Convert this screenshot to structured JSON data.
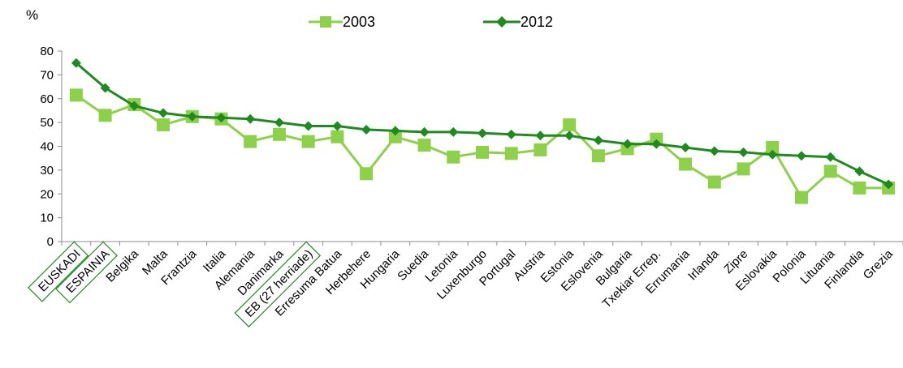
{
  "chart_data": {
    "type": "line",
    "ylabel": "%",
    "ylim": [
      0,
      80
    ],
    "yticks": [
      0,
      10,
      20,
      30,
      40,
      50,
      60,
      70,
      80
    ],
    "grid": false,
    "legend_position": "top-center",
    "categories": [
      "EUSKADI",
      "ESPAINIA",
      "Belgika",
      "Malta",
      "Frantzia",
      "Italia",
      "Alemania",
      "Danimarka",
      "EB (27 herriade)",
      "Erresuma Batua",
      "Herbehere",
      "Hungaria",
      "Suedia",
      "Letonia",
      "Luxenburgo",
      "Portugal",
      "Austria",
      "Estonia",
      "Eslovenia",
      "Bulgaria",
      "Txekiar Errep.",
      "Errumania",
      "Irlanda",
      "Zipre",
      "Eslovakia",
      "Polonia",
      "Lituania",
      "Finlandia",
      "Grezia"
    ],
    "highlighted_categories": [
      "EUSKADI",
      "ESPAINIA",
      "EB (27 herriade)"
    ],
    "series": [
      {
        "name": "2003",
        "marker": "square",
        "color": "#8dd04a",
        "values": [
          61.5,
          53,
          57.5,
          49,
          52.5,
          51.5,
          42,
          45,
          42,
          44,
          28.5,
          44,
          40.5,
          35.5,
          37.5,
          37,
          38.5,
          49,
          36,
          39,
          43,
          32.5,
          25,
          30.5,
          39.5,
          18.5,
          29.5,
          22.5,
          22.5
        ]
      },
      {
        "name": "2012",
        "marker": "diamond",
        "color": "#1f8a1f",
        "values": [
          75,
          64.5,
          57,
          54,
          52.5,
          52,
          51.5,
          50,
          48.5,
          48.5,
          47,
          46.5,
          46,
          46,
          45.5,
          45,
          44.5,
          44.5,
          42.5,
          41,
          41,
          39.5,
          38,
          37.5,
          36.5,
          36,
          35.5,
          29.5,
          24
        ]
      }
    ]
  }
}
